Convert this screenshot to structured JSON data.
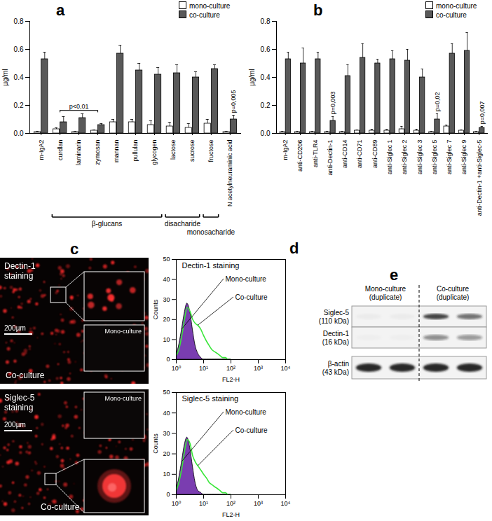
{
  "chart_data": [
    {
      "type": "bar",
      "title": "a",
      "y_label": "µg/ml",
      "categories": [
        "m-IgA2",
        "curdlan",
        "laminarin",
        "zymosan",
        "mannan",
        "pullulan",
        "glycogen",
        "lactose",
        "sucrose",
        "fructose",
        "N acetylneuraminic acid"
      ],
      "series": [
        {
          "name": "mono-culture",
          "color": "#ffffff",
          "values": [
            0.01,
            0.03,
            0.01,
            0.02,
            0.08,
            0.08,
            0.06,
            0.05,
            0.04,
            0.07,
            0.01
          ],
          "errors": [
            0.005,
            0.01,
            0.005,
            0.005,
            0.02,
            0.02,
            0.03,
            0.03,
            0.03,
            0.03,
            0.005
          ]
        },
        {
          "name": "co-culture",
          "color": "#595959",
          "values": [
            0.53,
            0.08,
            0.11,
            0.06,
            0.57,
            0.45,
            0.42,
            0.43,
            0.4,
            0.46,
            0.1
          ],
          "errors": [
            0.05,
            0.04,
            0.03,
            0.01,
            0.06,
            0.05,
            0.05,
            0.06,
            0.04,
            0.03,
            0.03
          ]
        }
      ],
      "ylim": [
        0,
        0.8
      ],
      "yticks": [
        {
          "value": 0,
          "label": "0.0"
        },
        0.2,
        0.4,
        0.6,
        0.8
      ],
      "legend": "top-right",
      "annotations": [
        {
          "text": "p<0,01",
          "from": "curdlan",
          "to": "zymosan"
        },
        {
          "text": "p=0,005",
          "at": "N acetylneuraminic acid"
        }
      ],
      "groups": [
        {
          "text": "β-glucans",
          "from": "curdlan",
          "to": "glycogen"
        },
        {
          "text": "disacharide",
          "from": "lactose",
          "to": "sucrose"
        },
        {
          "text": "monosacharide",
          "from": "fructose",
          "to": "fructose"
        }
      ]
    },
    {
      "type": "bar",
      "title": "b",
      "y_label": "µg/ml",
      "categories": [
        "m-IgA2",
        "anti-CD206",
        "anti-TLR4",
        "anti-Dectin-1",
        "anti-CD14",
        "anti-CD71",
        "anti-CD89",
        "anti-Siglec 1",
        "anti-Siglec 2",
        "anti-Siglec 3",
        "anti-Siglec 5",
        "anti-Siglec 7",
        "anti-Siglec 9",
        "anti-Dectin-1 +anti-Siglec-5"
      ],
      "series": [
        {
          "name": "mono-culture",
          "color": "#ffffff",
          "values": [
            0.01,
            0.01,
            0.01,
            0.01,
            0.01,
            0.02,
            0.02,
            0.02,
            0.03,
            0.02,
            0.01,
            0.05,
            0.02,
            0.01
          ],
          "errors": [
            0.005,
            0.005,
            0.005,
            0.005,
            0.005,
            0.005,
            0.01,
            0.01,
            0.02,
            0.01,
            0.005,
            0.01,
            0.005,
            0.005
          ]
        },
        {
          "name": "co-culture",
          "color": "#595959",
          "values": [
            0.53,
            0.5,
            0.53,
            0.09,
            0.41,
            0.54,
            0.5,
            0.53,
            0.52,
            0.4,
            0.1,
            0.57,
            0.59,
            0.04
          ],
          "errors": [
            0.05,
            0.11,
            0.05,
            0.03,
            0.08,
            0.1,
            0.03,
            0.06,
            0.08,
            0.06,
            0.04,
            0.07,
            0.13,
            0.01
          ]
        }
      ],
      "ylim": [
        0,
        0.8
      ],
      "yticks": [
        {
          "value": 0,
          "label": "0.0"
        },
        0.2,
        0.4,
        0.6,
        0.8
      ],
      "legend": "top-right",
      "annotations": [
        {
          "text": "p=0,003",
          "at": "anti-Dectin-1"
        },
        {
          "text": "p=0,02",
          "at": "anti-Siglec 5"
        },
        {
          "text": "p=0,007",
          "at": "anti-Dectin-1 +anti-Siglec-5"
        }
      ]
    },
    {
      "type": "area",
      "title": "d",
      "subtitle": "Dectin-1 staining",
      "x_label": "FL2-H",
      "y_label": "Counts",
      "log": "x",
      "x": [
        1,
        1.3,
        1.6,
        2,
        2.5,
        3.2,
        4,
        5,
        6.3,
        8,
        10,
        13,
        16,
        20,
        25,
        32,
        40,
        50,
        63,
        80,
        100
      ],
      "series": [
        {
          "name": "Mono-culture",
          "type": "area",
          "color": "#7a3db0",
          "values": [
            2,
            8,
            15,
            23,
            28,
            24,
            15,
            7,
            3,
            1,
            0,
            0,
            0,
            0,
            0,
            0,
            0,
            0,
            0,
            0,
            0
          ]
        },
        {
          "name": "Co-culture",
          "type": "line",
          "color": "#3ae63a",
          "values": [
            2,
            6,
            12,
            20,
            26,
            24,
            20,
            18,
            17,
            15,
            12,
            9,
            7,
            5,
            4,
            3,
            2,
            1,
            1,
            0,
            0
          ]
        }
      ],
      "xlim": [
        1,
        10000
      ],
      "xticks": [
        {
          "value": 1,
          "label": "10⁰"
        },
        {
          "value": 10,
          "label": "10¹"
        },
        {
          "value": 100,
          "label": "10²"
        },
        {
          "value": 1000,
          "label": "10³"
        },
        {
          "value": 10000,
          "label": "10⁴"
        }
      ],
      "ylim": [
        0,
        50
      ],
      "yticks": [
        0,
        10,
        20,
        30,
        40,
        50
      ]
    },
    {
      "type": "area",
      "subtitle": "Siglec-5 staining",
      "x_label": "FL2-H",
      "y_label": "Counts",
      "log": "x",
      "x": [
        1,
        1.3,
        1.6,
        2,
        2.5,
        3.2,
        4,
        5,
        6.3,
        8,
        10,
        13,
        16,
        20,
        25,
        32,
        40,
        50,
        63,
        80,
        100
      ],
      "series": [
        {
          "name": "Mono-culture",
          "type": "area",
          "color": "#7a3db0",
          "values": [
            2,
            9,
            16,
            24,
            28,
            23,
            14,
            6,
            2,
            1,
            0,
            0,
            0,
            0,
            0,
            0,
            0,
            0,
            0,
            0,
            0
          ]
        },
        {
          "name": "Co-culture",
          "type": "line",
          "color": "#3ae63a",
          "values": [
            2,
            7,
            13,
            21,
            27,
            25,
            19,
            16,
            14,
            12,
            10,
            8,
            6,
            5,
            4,
            3,
            2,
            1,
            1,
            0,
            0
          ]
        }
      ],
      "xlim": [
        1,
        10000
      ],
      "xticks": [
        {
          "value": 1,
          "label": "10⁰"
        },
        {
          "value": 10,
          "label": "10¹"
        },
        {
          "value": 100,
          "label": "10²"
        },
        {
          "value": 1000,
          "label": "10³"
        },
        {
          "value": 10000,
          "label": "10⁴"
        }
      ],
      "ylim": [
        0,
        50
      ],
      "yticks": [
        0,
        10,
        20,
        30,
        40,
        50
      ]
    }
  ],
  "images": {
    "title": "c",
    "panels": [
      {
        "stain": "Dectin-1 staining",
        "main": "Co-culture",
        "inset": "Mono-culture",
        "scale_bar": "200µm"
      },
      {
        "stain": "Siglec-5 staining",
        "main": "Co-culture",
        "inset": "Mono-culture",
        "scale_bar": "200µm"
      }
    ]
  },
  "blot": {
    "title": "e",
    "lanes": [
      {
        "name": "Mono-culture",
        "note": "(duplicate)"
      },
      {
        "name": "Co-culture",
        "note": "(duplicate)"
      }
    ],
    "rows": [
      {
        "name": "Siglec-5",
        "size": "(110 kDa)",
        "bands": [
          0.03,
          0.03,
          0.8,
          0.6
        ]
      },
      {
        "name": "Dectin-1",
        "size": "(16 kDa)",
        "bands": [
          0.02,
          0.02,
          0.45,
          0.4
        ]
      },
      {
        "name": "β-actin",
        "size": "(43 kDa)",
        "bands": [
          0.95,
          0.95,
          0.95,
          0.95
        ]
      }
    ]
  }
}
